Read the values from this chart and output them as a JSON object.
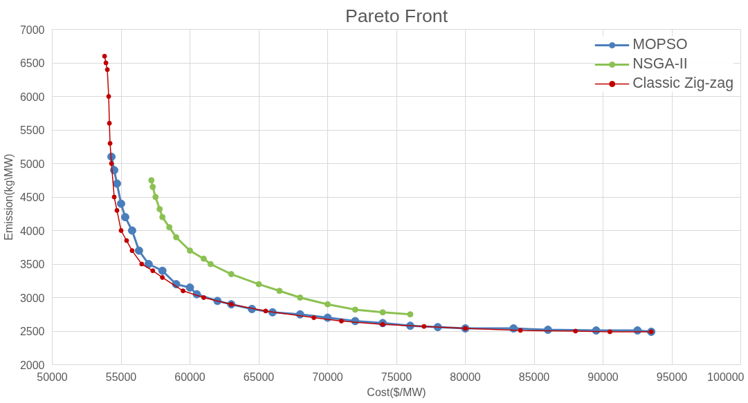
{
  "chart_data": {
    "type": "line",
    "title": "Pareto Front",
    "xlabel": "Cost($/MW)",
    "ylabel": "Emission(kg\\MW)",
    "xlim": [
      50000,
      100000
    ],
    "xticks": [
      50000,
      55000,
      60000,
      65000,
      70000,
      75000,
      80000,
      85000,
      90000,
      95000,
      100000
    ],
    "ylim": [
      2000,
      7000
    ],
    "yticks": [
      2000,
      2500,
      3000,
      3500,
      4000,
      4500,
      5000,
      5500,
      6000,
      6500,
      7000
    ],
    "grid": true,
    "legend": "top right",
    "marker": "circle",
    "line_style": "solid",
    "series": [
      {
        "name": "MOPSO",
        "color": "#4a7ebb",
        "x": [
          54300,
          54500,
          54700,
          55000,
          55300,
          55800,
          56300,
          57000,
          58000,
          59000,
          60000,
          60500,
          62000,
          63000,
          64500,
          66000,
          68000,
          70000,
          72000,
          74000,
          76000,
          78000,
          80000,
          83500,
          86000,
          89500,
          92500,
          93500
        ],
        "values": [
          5100,
          4900,
          4700,
          4400,
          4200,
          4000,
          3700,
          3500,
          3400,
          3200,
          3150,
          3050,
          2950,
          2900,
          2830,
          2780,
          2750,
          2700,
          2650,
          2620,
          2580,
          2560,
          2540,
          2540,
          2520,
          2510,
          2510,
          2490
        ]
      },
      {
        "name": "NSGA-II",
        "color": "#8cc152",
        "x": [
          57200,
          57300,
          57500,
          57800,
          58000,
          58500,
          59000,
          60000,
          61000,
          61500,
          63000,
          65000,
          66500,
          68000,
          70000,
          72000,
          74000,
          76000
        ],
        "values": [
          4750,
          4650,
          4500,
          4320,
          4200,
          4050,
          3900,
          3700,
          3580,
          3500,
          3350,
          3200,
          3100,
          3000,
          2900,
          2820,
          2780,
          2750
        ]
      },
      {
        "name": "Classic Zig-zag",
        "color": "#c00000",
        "x": [
          53800,
          53900,
          54000,
          54100,
          54150,
          54200,
          54300,
          54500,
          54700,
          55000,
          55400,
          55800,
          56500,
          57300,
          58000,
          59500,
          61000,
          63000,
          65500,
          69000,
          71000,
          74000,
          77000,
          80000,
          84000,
          88000,
          90500,
          93500
        ],
        "values": [
          6600,
          6500,
          6400,
          6000,
          5600,
          5300,
          5000,
          4500,
          4300,
          4000,
          3850,
          3700,
          3500,
          3400,
          3300,
          3100,
          3000,
          2900,
          2800,
          2700,
          2650,
          2600,
          2570,
          2540,
          2510,
          2500,
          2490,
          2490
        ]
      }
    ]
  }
}
